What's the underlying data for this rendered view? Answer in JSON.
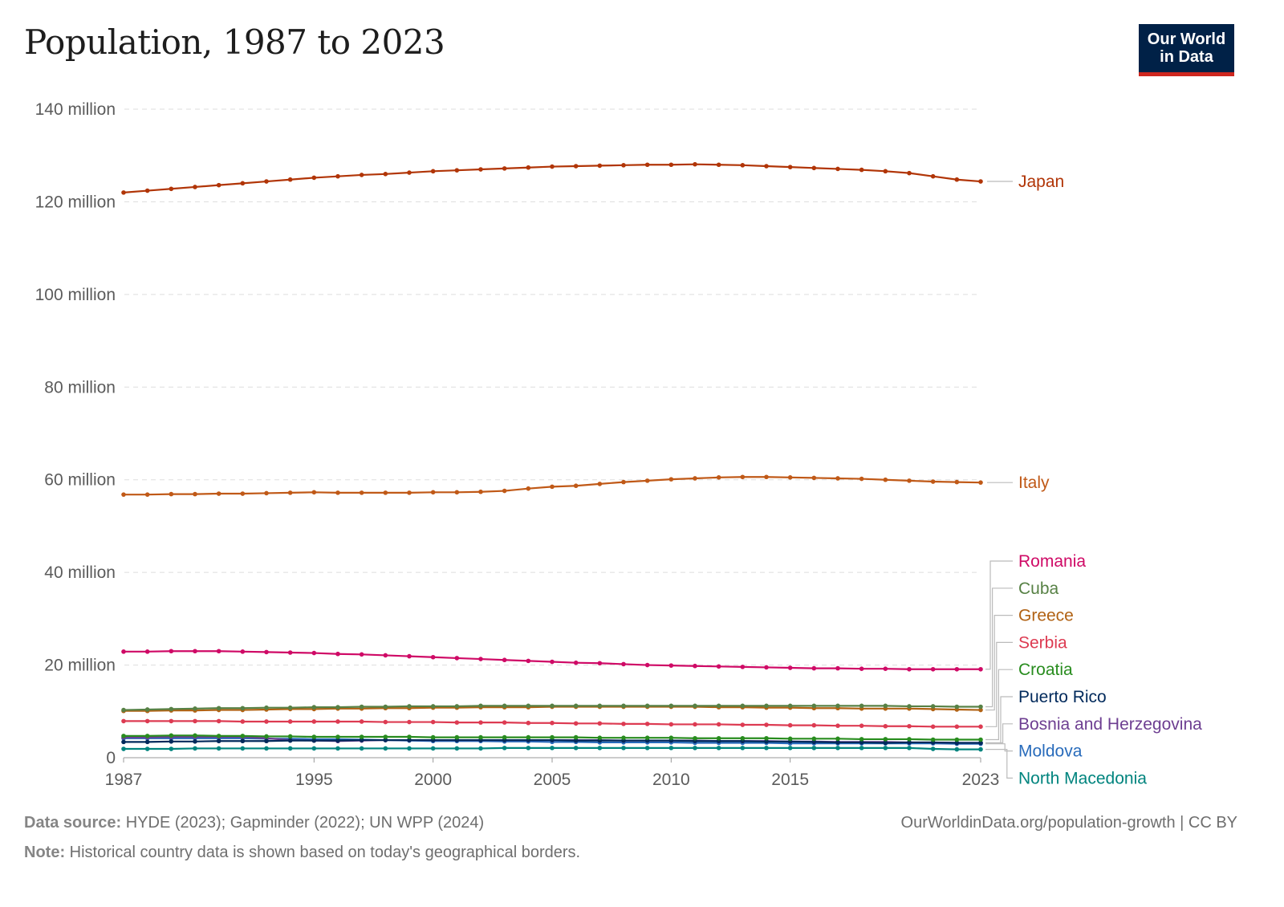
{
  "header": {
    "title": "Population, 1987 to 2023",
    "logo_line1": "Our World",
    "logo_line2": "in Data"
  },
  "footer": {
    "source_label": "Data source:",
    "source": "HYDE (2023); Gapminder (2022); UN WPP (2024)",
    "note_label": "Note:",
    "note": "Historical country data is shown based on today's geographical borders.",
    "url": "OurWorldinData.org/population-growth | CC BY"
  },
  "chart_data": {
    "type": "line",
    "title": "Population, 1987 to 2023",
    "xlabel": "",
    "ylabel": "",
    "xlim": [
      1987,
      2023
    ],
    "ylim": [
      0,
      140000000
    ],
    "x_ticks": [
      "1987",
      "1995",
      "2000",
      "2005",
      "2010",
      "2015",
      "2023"
    ],
    "y_ticks": [
      {
        "value": 0,
        "label": "0"
      },
      {
        "value": 20,
        "label": "20 million"
      },
      {
        "value": 40,
        "label": "40 million"
      },
      {
        "value": 60,
        "label": "60 million"
      },
      {
        "value": 80,
        "label": "80 million"
      },
      {
        "value": 100,
        "label": "100 million"
      },
      {
        "value": 120,
        "label": "120 million"
      },
      {
        "value": 140,
        "label": "140 million"
      }
    ],
    "units": "million",
    "grid": "horizontal dashed",
    "legend": "right (end labels)",
    "x_start": 1987,
    "series": [
      {
        "name": "Japan",
        "color": "#b13507",
        "values": [
          122.0,
          122.4,
          122.8,
          123.2,
          123.6,
          124.0,
          124.4,
          124.8,
          125.2,
          125.5,
          125.8,
          126.0,
          126.3,
          126.6,
          126.8,
          127.0,
          127.2,
          127.4,
          127.6,
          127.7,
          127.8,
          127.9,
          128.0,
          128.0,
          128.1,
          128.0,
          127.9,
          127.7,
          127.5,
          127.3,
          127.1,
          126.9,
          126.6,
          126.2,
          125.5,
          124.8,
          124.4
        ]
      },
      {
        "name": "Italy",
        "color": "#c05917",
        "values": [
          56.8,
          56.8,
          56.9,
          56.9,
          57.0,
          57.0,
          57.1,
          57.2,
          57.3,
          57.2,
          57.2,
          57.2,
          57.2,
          57.3,
          57.3,
          57.4,
          57.6,
          58.1,
          58.5,
          58.7,
          59.1,
          59.5,
          59.8,
          60.1,
          60.3,
          60.5,
          60.6,
          60.6,
          60.5,
          60.4,
          60.3,
          60.2,
          60.0,
          59.8,
          59.6,
          59.5,
          59.4
        ]
      },
      {
        "name": "Romania",
        "color": "#cf0a66",
        "values": [
          22.9,
          22.9,
          23.0,
          23.0,
          23.0,
          22.9,
          22.8,
          22.7,
          22.6,
          22.4,
          22.3,
          22.1,
          21.9,
          21.7,
          21.5,
          21.3,
          21.1,
          20.9,
          20.7,
          20.5,
          20.4,
          20.2,
          20.0,
          19.9,
          19.8,
          19.7,
          19.6,
          19.5,
          19.4,
          19.3,
          19.3,
          19.2,
          19.2,
          19.1,
          19.1,
          19.1,
          19.1
        ]
      },
      {
        "name": "Cuba",
        "color": "#578145",
        "values": [
          10.3,
          10.4,
          10.5,
          10.6,
          10.7,
          10.7,
          10.8,
          10.8,
          10.9,
          10.9,
          11.0,
          11.0,
          11.1,
          11.1,
          11.1,
          11.2,
          11.2,
          11.2,
          11.2,
          11.2,
          11.2,
          11.2,
          11.2,
          11.2,
          11.2,
          11.2,
          11.2,
          11.2,
          11.2,
          11.2,
          11.2,
          11.2,
          11.2,
          11.1,
          11.1,
          11.0,
          11.0
        ]
      },
      {
        "name": "Greece",
        "color": "#b16214",
        "values": [
          10.1,
          10.1,
          10.2,
          10.2,
          10.3,
          10.3,
          10.4,
          10.5,
          10.5,
          10.6,
          10.6,
          10.7,
          10.7,
          10.8,
          10.8,
          10.9,
          10.9,
          10.9,
          11.0,
          11.0,
          11.0,
          11.0,
          11.0,
          11.0,
          11.0,
          10.9,
          10.9,
          10.8,
          10.8,
          10.7,
          10.7,
          10.6,
          10.6,
          10.6,
          10.5,
          10.4,
          10.3
        ]
      },
      {
        "name": "Serbia",
        "color": "#dd3b52",
        "values": [
          7.9,
          7.9,
          7.9,
          7.9,
          7.9,
          7.8,
          7.8,
          7.8,
          7.8,
          7.8,
          7.8,
          7.7,
          7.7,
          7.7,
          7.6,
          7.6,
          7.6,
          7.5,
          7.5,
          7.4,
          7.4,
          7.3,
          7.3,
          7.2,
          7.2,
          7.2,
          7.1,
          7.1,
          7.0,
          7.0,
          6.9,
          6.9,
          6.8,
          6.8,
          6.7,
          6.7,
          6.7
        ]
      },
      {
        "name": "Croatia",
        "color": "#288c1e",
        "values": [
          4.7,
          4.7,
          4.8,
          4.8,
          4.7,
          4.7,
          4.6,
          4.6,
          4.5,
          4.5,
          4.5,
          4.5,
          4.5,
          4.4,
          4.4,
          4.4,
          4.4,
          4.4,
          4.4,
          4.4,
          4.3,
          4.3,
          4.3,
          4.3,
          4.2,
          4.2,
          4.2,
          4.2,
          4.1,
          4.1,
          4.1,
          4.0,
          4.0,
          4.0,
          3.9,
          3.9,
          3.9
        ]
      },
      {
        "name": "Puerto Rico",
        "color": "#00295b",
        "values": [
          3.4,
          3.4,
          3.5,
          3.5,
          3.6,
          3.6,
          3.6,
          3.7,
          3.7,
          3.7,
          3.8,
          3.8,
          3.8,
          3.8,
          3.8,
          3.8,
          3.8,
          3.8,
          3.8,
          3.7,
          3.7,
          3.7,
          3.7,
          3.7,
          3.6,
          3.6,
          3.6,
          3.5,
          3.5,
          3.4,
          3.3,
          3.3,
          3.2,
          3.3,
          3.3,
          3.2,
          3.2
        ]
      },
      {
        "name": "Bosnia and Herzegovina",
        "color": "#6d3e91",
        "values": [
          4.4,
          4.4,
          4.5,
          4.5,
          4.5,
          4.5,
          4.2,
          3.8,
          3.7,
          3.6,
          3.7,
          3.8,
          3.8,
          3.8,
          3.8,
          3.8,
          3.8,
          3.8,
          3.8,
          3.8,
          3.8,
          3.7,
          3.7,
          3.7,
          3.7,
          3.6,
          3.6,
          3.6,
          3.5,
          3.5,
          3.4,
          3.4,
          3.4,
          3.3,
          3.3,
          3.2,
          3.2
        ]
      },
      {
        "name": "Moldova",
        "color": "#286bbb",
        "values": [
          4.2,
          4.2,
          4.2,
          4.2,
          4.2,
          4.2,
          4.1,
          4.1,
          4.0,
          4.0,
          3.9,
          3.8,
          3.7,
          3.6,
          3.6,
          3.6,
          3.5,
          3.5,
          3.4,
          3.4,
          3.3,
          3.3,
          3.3,
          3.3,
          3.2,
          3.2,
          3.2,
          3.2,
          3.1,
          3.1,
          3.1,
          3.1,
          3.1,
          3.1,
          3.1,
          3.0,
          3.0
        ]
      },
      {
        "name": "North Macedonia",
        "color": "#00847e",
        "values": [
          1.9,
          1.9,
          1.9,
          2.0,
          2.0,
          2.0,
          2.0,
          2.0,
          2.0,
          2.0,
          2.0,
          2.0,
          2.0,
          2.0,
          2.0,
          2.0,
          2.1,
          2.1,
          2.1,
          2.1,
          2.1,
          2.1,
          2.1,
          2.1,
          2.1,
          2.1,
          2.1,
          2.1,
          2.1,
          2.1,
          2.1,
          2.1,
          2.1,
          2.1,
          1.9,
          1.8,
          1.8
        ]
      }
    ]
  }
}
